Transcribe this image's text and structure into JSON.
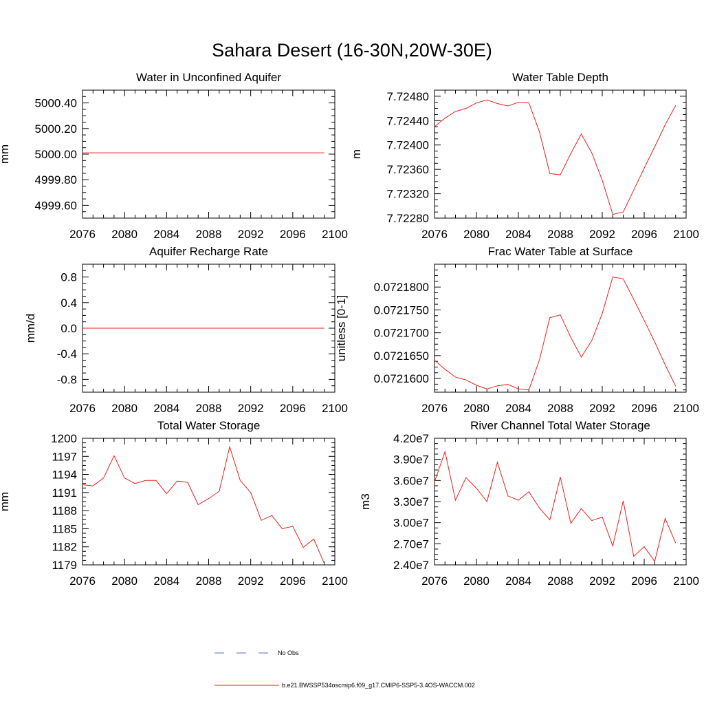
{
  "figure_title": "Sahara Desert (16-30N,20W-30E)",
  "colors": {
    "model": "#e8201a",
    "obs": "#5a6ad0"
  },
  "legend": {
    "obs_label": "No Obs",
    "model_label": "b.e21.BWSSP534oscmip6.f09_g17.CMIP6-SSP5-3.4OS-WACCM.002"
  },
  "chart_data": [
    {
      "type": "line",
      "title": "Water in Unconfined Aquifer",
      "ylabel": "mm",
      "xlim": [
        2076,
        2100
      ],
      "ylim": [
        4999.5,
        5000.5
      ],
      "xticks": [
        2076,
        2080,
        2084,
        2088,
        2092,
        2096,
        2100
      ],
      "xtick_labels": [
        "2076",
        "2080",
        "2084",
        "2088",
        "2092",
        "2096",
        "2100"
      ],
      "yticks": [
        4999.6,
        4999.8,
        5000.0,
        5000.2,
        5000.4
      ],
      "ytick_labels": [
        "4999.60",
        "4999.80",
        "5000.00",
        "5000.20",
        "5000.40"
      ],
      "x": [
        2076,
        2077,
        2078,
        2079,
        2080,
        2081,
        2082,
        2083,
        2084,
        2085,
        2086,
        2087,
        2088,
        2089,
        2090,
        2091,
        2092,
        2093,
        2094,
        2095,
        2096,
        2097,
        2098,
        2099
      ],
      "y": [
        5000.01,
        5000.01,
        5000.01,
        5000.01,
        5000.01,
        5000.01,
        5000.01,
        5000.01,
        5000.01,
        5000.01,
        5000.01,
        5000.01,
        5000.01,
        5000.01,
        5000.01,
        5000.01,
        5000.01,
        5000.01,
        5000.01,
        5000.01,
        5000.01,
        5000.01,
        5000.01,
        5000.01
      ]
    },
    {
      "type": "line",
      "title": "Water Table Depth",
      "ylabel": "m",
      "xlim": [
        2076,
        2100
      ],
      "ylim": [
        7.7228,
        7.7249
      ],
      "xticks": [
        2076,
        2080,
        2084,
        2088,
        2092,
        2096,
        2100
      ],
      "xtick_labels": [
        "2076",
        "2080",
        "2084",
        "2088",
        "2092",
        "2096",
        "2100"
      ],
      "yticks": [
        7.7228,
        7.7232,
        7.7236,
        7.724,
        7.7244,
        7.7248
      ],
      "ytick_labels": [
        "7.72280",
        "7.72320",
        "7.72360",
        "7.72400",
        "7.72440",
        "7.72480"
      ],
      "x": [
        2076,
        2077,
        2078,
        2079,
        2080,
        2081,
        2082,
        2083,
        2084,
        2085,
        2086,
        2087,
        2088,
        2089,
        2090,
        2091,
        2092,
        2093,
        2094,
        2095,
        2096,
        2097,
        2098,
        2099
      ],
      "y": [
        7.7243,
        7.72444,
        7.72455,
        7.7246,
        7.72469,
        7.72474,
        7.72468,
        7.72464,
        7.7247,
        7.72469,
        7.72422,
        7.72353,
        7.72351,
        7.72386,
        7.72418,
        7.72387,
        7.72342,
        7.72286,
        7.7229,
        7.72326,
        7.72362,
        7.72397,
        7.72433,
        7.72465
      ]
    },
    {
      "type": "line",
      "title": "Aquifer Recharge Rate",
      "ylabel": "mm/d",
      "xlim": [
        2076,
        2100
      ],
      "ylim": [
        -1.0,
        1.0
      ],
      "xticks": [
        2076,
        2080,
        2084,
        2088,
        2092,
        2096,
        2100
      ],
      "xtick_labels": [
        "2076",
        "2080",
        "2084",
        "2088",
        "2092",
        "2096",
        "2100"
      ],
      "yticks": [
        -0.8,
        -0.4,
        0.0,
        0.4,
        0.8
      ],
      "ytick_labels": [
        "-0.8",
        "-0.4",
        "0.0",
        "0.4",
        "0.8"
      ],
      "x": [
        2076,
        2077,
        2078,
        2079,
        2080,
        2081,
        2082,
        2083,
        2084,
        2085,
        2086,
        2087,
        2088,
        2089,
        2090,
        2091,
        2092,
        2093,
        2094,
        2095,
        2096,
        2097,
        2098,
        2099
      ],
      "y": [
        0,
        0,
        0,
        0,
        0,
        0,
        0,
        0,
        0,
        0,
        0,
        0,
        0,
        0,
        0,
        0,
        0,
        0,
        0,
        0,
        0,
        0,
        0,
        0
      ]
    },
    {
      "type": "line",
      "title": "Frac Water Table at Surface",
      "ylabel": "unitless [0-1]",
      "xlim": [
        2076,
        2100
      ],
      "ylim": [
        0.072157,
        0.072185
      ],
      "xticks": [
        2076,
        2080,
        2084,
        2088,
        2092,
        2096,
        2100
      ],
      "xtick_labels": [
        "2076",
        "2080",
        "2084",
        "2088",
        "2092",
        "2096",
        "2100"
      ],
      "yticks": [
        0.07216,
        0.072165,
        0.07217,
        0.072175,
        0.07218
      ],
      "ytick_labels": [
        "0.0721600",
        "0.0721650",
        "0.0721700",
        "0.0721750",
        "0.0721800"
      ],
      "x": [
        2076,
        2077,
        2078,
        2079,
        2080,
        2081,
        2082,
        2083,
        2084,
        2085,
        2086,
        2087,
        2088,
        2089,
        2090,
        2091,
        2092,
        2093,
        2094,
        2095,
        2096,
        2097,
        2098,
        2099
      ],
      "y": [
        0.072164,
        0.072162,
        0.0721603,
        0.0721597,
        0.0721585,
        0.0721577,
        0.0721584,
        0.0721587,
        0.0721577,
        0.0721575,
        0.072164,
        0.0721733,
        0.0721739,
        0.072169,
        0.0721647,
        0.0721683,
        0.0721742,
        0.0721822,
        0.0721818,
        0.0721773,
        0.0721727,
        0.072168,
        0.072163,
        0.0721583
      ]
    },
    {
      "type": "line",
      "title": "Total Water Storage",
      "ylabel": "mm",
      "xlim": [
        2076,
        2100
      ],
      "ylim": [
        1179,
        1200
      ],
      "xticks": [
        2076,
        2080,
        2084,
        2088,
        2092,
        2096,
        2100
      ],
      "xtick_labels": [
        "2076",
        "2080",
        "2084",
        "2088",
        "2092",
        "2096",
        "2100"
      ],
      "yticks": [
        1179,
        1182,
        1185,
        1188,
        1191,
        1194,
        1197,
        1200
      ],
      "ytick_labels": [
        "1179",
        "1182",
        "1185",
        "1188",
        "1191",
        "1194",
        "1197",
        "1200"
      ],
      "x": [
        2076,
        2077,
        2078,
        2079,
        2080,
        2081,
        2082,
        2083,
        2084,
        2085,
        2086,
        2087,
        2088,
        2089,
        2090,
        2091,
        2092,
        2093,
        2094,
        2095,
        2096,
        2097,
        2098,
        2099
      ],
      "y": [
        1192.3,
        1192.1,
        1193.4,
        1197.1,
        1193.4,
        1192.5,
        1193.0,
        1193.0,
        1190.8,
        1192.9,
        1192.7,
        1189.0,
        1190.0,
        1191.2,
        1198.6,
        1193.0,
        1191.0,
        1186.4,
        1187.2,
        1185.0,
        1185.4,
        1181.9,
        1183.3,
        1179.2
      ]
    },
    {
      "type": "line",
      "title": "River Channel Total Water Storage",
      "ylabel": "m3",
      "xlim": [
        2076,
        2100
      ],
      "ylim": [
        24000000,
        42000000
      ],
      "xticks": [
        2076,
        2080,
        2084,
        2088,
        2092,
        2096,
        2100
      ],
      "xtick_labels": [
        "2076",
        "2080",
        "2084",
        "2088",
        "2092",
        "2096",
        "2100"
      ],
      "yticks": [
        24000000,
        27000000,
        30000000,
        33000000,
        36000000,
        39000000,
        42000000
      ],
      "ytick_labels": [
        "2.40e7",
        "2.70e7",
        "3.00e7",
        "3.30e7",
        "3.60e7",
        "3.90e7",
        "4.20e7"
      ],
      "x": [
        2076,
        2077,
        2078,
        2079,
        2080,
        2081,
        2082,
        2083,
        2084,
        2085,
        2086,
        2087,
        2088,
        2089,
        2090,
        2091,
        2092,
        2093,
        2094,
        2095,
        2096,
        2097,
        2098,
        2099
      ],
      "y": [
        35800000,
        40100000,
        33200000,
        36400000,
        34900000,
        33000000,
        38600000,
        33800000,
        33200000,
        34400000,
        32100000,
        30400000,
        36500000,
        29900000,
        32000000,
        30300000,
        30800000,
        26700000,
        33100000,
        25200000,
        26600000,
        24500000,
        30600000,
        27100000
      ]
    }
  ]
}
